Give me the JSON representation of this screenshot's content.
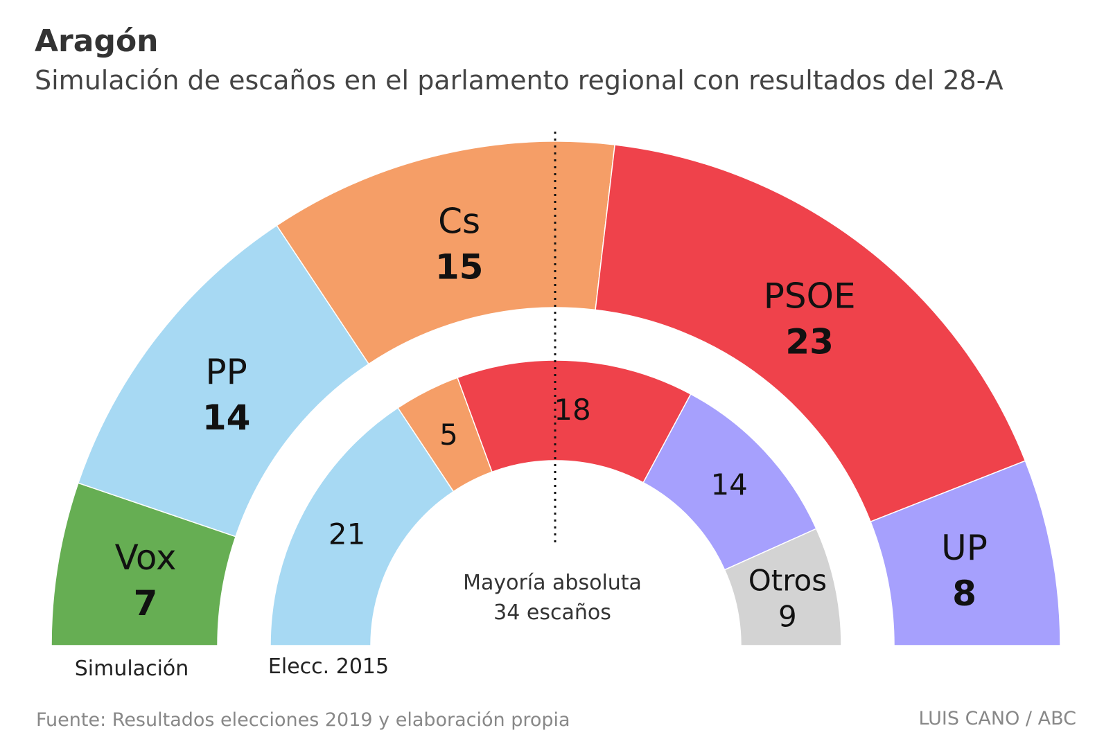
{
  "title": "Aragón",
  "subtitle": "Simulación de escaños en el parlamento regional con resultados del 28-A",
  "source": "Fuente: Resultados elecciones 2019 y elaboración propia",
  "credit": "LUIS CANO / ABC",
  "chart_data": {
    "type": "pie",
    "rings": [
      {
        "label": "Simulación",
        "parties": [
          {
            "name": "Vox",
            "seats": 7,
            "color": "#66ae53"
          },
          {
            "name": "PP",
            "seats": 14,
            "color": "#a7d9f3"
          },
          {
            "name": "Cs",
            "seats": 15,
            "color": "#f59e67"
          },
          {
            "name": "PSOE",
            "seats": 23,
            "color": "#ef424b"
          },
          {
            "name": "UP",
            "seats": 8,
            "color": "#a6a0fd"
          }
        ]
      },
      {
        "label": "Elecc. 2015",
        "parties": [
          {
            "name": "",
            "seats": 21,
            "color": "#a7d9f3"
          },
          {
            "name": "",
            "seats": 5,
            "color": "#f59e67"
          },
          {
            "name": "",
            "seats": 18,
            "color": "#ef424b"
          },
          {
            "name": "",
            "seats": 14,
            "color": "#a6a0fd"
          },
          {
            "name": "Otros",
            "seats": 9,
            "color": "#d3d3d3"
          }
        ]
      }
    ],
    "majority": {
      "line1": "Mayoría absoluta",
      "line2": "34 escaños",
      "seats": 34
    }
  }
}
